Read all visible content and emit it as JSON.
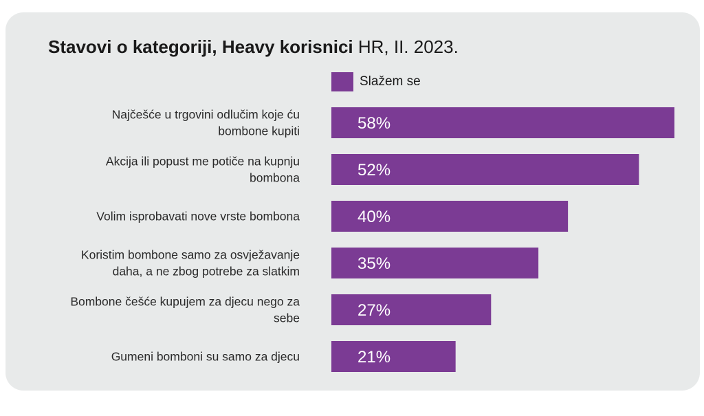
{
  "title": {
    "bold": "Stavovi o kategoriji, Heavy korisnici",
    "light": "HR, II. 2023."
  },
  "colors": {
    "bar": "#7b3b94",
    "card_background": "#e8eaea",
    "value_label": "#ffffff"
  },
  "chart_data": {
    "type": "bar",
    "orientation": "horizontal",
    "title": "Stavovi o kategoriji, Heavy korisnici HR, II. 2023.",
    "categories": [
      [
        "Najčešće u trgovini odlučim koje ću",
        "bombone kupiti"
      ],
      [
        "Akcija ili popust me potiče na kupnju",
        "bombona"
      ],
      [
        "Volim isprobavati nove vrste bombona"
      ],
      [
        "Koristim bombone samo za osvježavanje",
        "daha, a ne zbog potrebe za slatkim"
      ],
      [
        "Bombone češće kupujem za djecu nego za",
        "sebe"
      ],
      [
        "Gumeni bomboni su samo za djecu"
      ]
    ],
    "series": [
      {
        "name": "Slažem se",
        "values": [
          58,
          52,
          40,
          35,
          27,
          21
        ],
        "labels": [
          "58%",
          "52%",
          "40%",
          "35%",
          "27%",
          "21%"
        ]
      }
    ],
    "xlim": [
      0,
      58
    ],
    "grid": false,
    "legend": "top"
  }
}
